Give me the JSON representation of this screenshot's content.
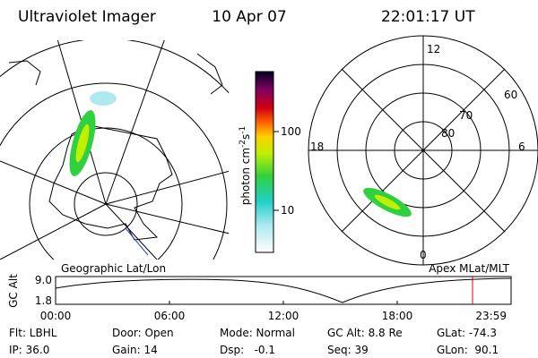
{
  "header": {
    "title": "Ultraviolet Imager",
    "date": "10 Apr 07",
    "time": "22:01:17 UT"
  },
  "left_panel": {
    "label": "Geographic Lat/Lon"
  },
  "colorbar": {
    "label": "photon cm",
    "exp1": "-2",
    "unit2": "s",
    "exp2": "-1",
    "ticks": [
      "100",
      "10"
    ]
  },
  "right_panel": {
    "label": "Apex MLat/MLT",
    "mlt_labels": [
      "12",
      "18",
      "6",
      "0"
    ],
    "lat_labels": [
      "60",
      "70",
      "80"
    ]
  },
  "altitude_plot": {
    "axis_label": "GC Alt",
    "yticks": [
      "9.0",
      "1.8"
    ],
    "xticks": [
      "00:00",
      "06:00",
      "12:00",
      "18:00",
      "23:59"
    ]
  },
  "status": {
    "rows": [
      [
        "Flt: LBHL",
        "Door: Open",
        "Mode: Normal",
        "GC Alt: 8.8 Re",
        "GLat: -74.3"
      ],
      [
        "IP: 36.0",
        "Gain: 14",
        "Dsp:   -0.1",
        "Seq: 39",
        "GLon:  90.1"
      ]
    ]
  }
}
